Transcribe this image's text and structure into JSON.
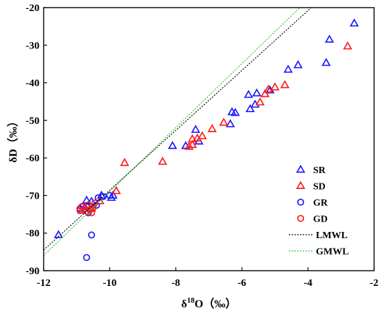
{
  "chart_data": {
    "type": "scatter",
    "xlabel": "δ18O（‰）",
    "xlabel_parts": {
      "base": "δ",
      "sup": "18",
      "rest": "O（‰）"
    },
    "ylabel": "δD（‰）",
    "xlim": [
      -12,
      -2
    ],
    "ylim": [
      -90,
      -20
    ],
    "xticks": [
      "-12",
      "-10",
      "-8",
      "-6",
      "-4",
      "-2"
    ],
    "yticks": [
      "-90",
      "-80",
      "-70",
      "-60",
      "-50",
      "-40",
      "-30",
      "-20"
    ],
    "xtick_values": [
      -12,
      -10,
      -8,
      -6,
      -4,
      -2
    ],
    "ytick_values": [
      -90,
      -80,
      -70,
      -60,
      -50,
      -40,
      -30,
      -20
    ],
    "grid": false,
    "legend_position": "bottom-right",
    "series": [
      {
        "name": "SR",
        "marker": "triangle",
        "color": "#1a1aff",
        "points": [
          [
            -11.55,
            -80.5
          ],
          [
            -10.7,
            -71.3
          ],
          [
            -10.55,
            -71.6
          ],
          [
            -10.25,
            -70.0
          ],
          [
            -9.95,
            -70.6
          ],
          [
            -9.9,
            -70.0
          ],
          [
            -8.1,
            -56.8
          ],
          [
            -7.7,
            -56.8
          ],
          [
            -7.4,
            -52.5
          ],
          [
            -7.3,
            -55.6
          ],
          [
            -6.3,
            -47.8
          ],
          [
            -6.2,
            -48.0
          ],
          [
            -6.35,
            -51.0
          ],
          [
            -5.8,
            -43.2
          ],
          [
            -5.75,
            -47.0
          ],
          [
            -5.55,
            -42.8
          ],
          [
            -5.6,
            -45.8
          ],
          [
            -5.15,
            -42.0
          ],
          [
            -4.6,
            -36.5
          ],
          [
            -4.3,
            -35.3
          ],
          [
            -3.45,
            -34.7
          ],
          [
            -3.35,
            -28.5
          ],
          [
            -2.6,
            -24.2
          ]
        ]
      },
      {
        "name": "SD",
        "marker": "triangle",
        "color": "#ff1a1a",
        "points": [
          [
            -10.85,
            -74.0
          ],
          [
            -10.55,
            -73.5
          ],
          [
            -10.3,
            -71.5
          ],
          [
            -9.8,
            -68.8
          ],
          [
            -9.55,
            -61.3
          ],
          [
            -8.4,
            -61.0
          ],
          [
            -7.6,
            -57.0
          ],
          [
            -7.5,
            -56.5
          ],
          [
            -7.5,
            -55.0
          ],
          [
            -7.35,
            -54.8
          ],
          [
            -7.2,
            -54.2
          ],
          [
            -6.9,
            -52.3
          ],
          [
            -6.55,
            -50.6
          ],
          [
            -5.45,
            -45.2
          ],
          [
            -5.3,
            -43.0
          ],
          [
            -5.2,
            -41.8
          ],
          [
            -5.0,
            -41.2
          ],
          [
            -4.7,
            -40.6
          ],
          [
            -2.8,
            -30.3
          ]
        ]
      },
      {
        "name": "GR",
        "marker": "circle",
        "color": "#1a1aff",
        "points": [
          [
            -10.9,
            -73.5
          ],
          [
            -10.8,
            -72.8
          ],
          [
            -10.7,
            -73.0
          ],
          [
            -10.65,
            -74.6
          ],
          [
            -10.4,
            -72.6
          ],
          [
            -10.35,
            -70.6
          ],
          [
            -10.2,
            -70.3
          ],
          [
            -10.0,
            -70.0
          ],
          [
            -10.55,
            -80.5
          ],
          [
            -10.7,
            -86.5
          ]
        ]
      },
      {
        "name": "GD",
        "marker": "circle",
        "color": "#ff1a1a",
        "points": [
          [
            -10.9,
            -74.0
          ],
          [
            -10.85,
            -73.0
          ],
          [
            -10.75,
            -73.5
          ],
          [
            -10.7,
            -74.2
          ],
          [
            -10.65,
            -72.5
          ],
          [
            -10.6,
            -73.8
          ],
          [
            -10.55,
            -74.6
          ],
          [
            -10.5,
            -73.2
          ],
          [
            -10.45,
            -72.0
          ]
        ]
      },
      {
        "name": "LMWL",
        "marker": "line",
        "color": "#000000",
        "dash": "dotted",
        "points": [
          [
            -12,
            -84.5
          ],
          [
            -3.9,
            -20
          ]
        ]
      },
      {
        "name": "GMWL",
        "marker": "line",
        "color": "#22cc22",
        "dash": "dotted",
        "points": [
          [
            -12,
            -86
          ],
          [
            -4.25,
            -20
          ]
        ]
      }
    ]
  }
}
